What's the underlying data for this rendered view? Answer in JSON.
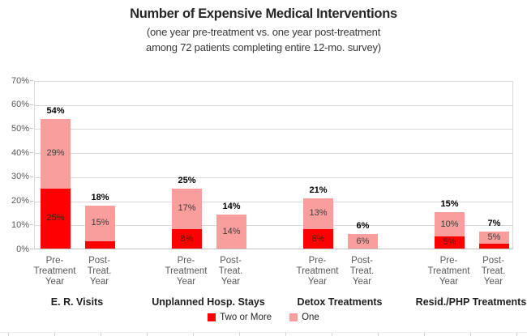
{
  "header": {
    "title": "Number of Expensive Medical Interventions",
    "subtitle_line1": "(one year pre-treatment vs. one year post-treatment",
    "subtitle_line2": "among 72 patients completing entire 12-mo. survey)"
  },
  "legend": [
    {
      "name": "Two or More",
      "color": "#fe0000"
    },
    {
      "name": "One",
      "color": "#fa9d9d"
    }
  ],
  "chart_data": {
    "type": "bar",
    "stacked": true,
    "title": "Number of Expensive Medical Interventions",
    "ylabel": "",
    "xlabel": "",
    "ylim": [
      0,
      70
    ],
    "ytick_step": 10,
    "ytick_labels": [
      "0%",
      "10%",
      "20%",
      "30%",
      "40%",
      "50%",
      "60%",
      "70%"
    ],
    "grid": true,
    "legend_position": "bottom",
    "series": [
      {
        "name": "Two or More",
        "color": "#fe0000"
      },
      {
        "name": "One",
        "color": "#fa9d9d"
      }
    ],
    "groups": [
      {
        "label": "E. R. Visits",
        "bars": [
          {
            "cat_lines": [
              "Pre-",
              "Treatment",
              "Year"
            ],
            "total": 54,
            "total_label": "54%",
            "two_or_more": 25,
            "two_or_more_label": "25%",
            "one": 29,
            "one_label": "29%"
          },
          {
            "cat_lines": [
              "Post-",
              "Treat.",
              "Year"
            ],
            "total": 18,
            "total_label": "18%",
            "two_or_more": 3,
            "two_or_more_label": "",
            "one": 15,
            "one_label": "15%"
          }
        ]
      },
      {
        "label": "Unplanned Hosp. Stays",
        "bars": [
          {
            "cat_lines": [
              "Pre-",
              "Treatment",
              "Year"
            ],
            "total": 25,
            "total_label": "25%",
            "two_or_more": 8,
            "two_or_more_label": "8%",
            "one": 17,
            "one_label": "17%"
          },
          {
            "cat_lines": [
              "Post-",
              "Treat.",
              "Year"
            ],
            "total": 14,
            "total_label": "14%",
            "two_or_more": 0,
            "two_or_more_label": "",
            "one": 14,
            "one_label": "14%"
          }
        ]
      },
      {
        "label": "Detox Treatments",
        "bars": [
          {
            "cat_lines": [
              "Pre-",
              "Treatment",
              "Year"
            ],
            "total": 21,
            "total_label": "21%",
            "two_or_more": 8,
            "two_or_more_label": "8%",
            "one": 13,
            "one_label": "13%"
          },
          {
            "cat_lines": [
              "Post-",
              "Treat.",
              "Year"
            ],
            "total": 6,
            "total_label": "6%",
            "two_or_more": 0,
            "two_or_more_label": "",
            "one": 6,
            "one_label": "6%"
          }
        ]
      },
      {
        "label": "Resid./PHP Treatments",
        "bars": [
          {
            "cat_lines": [
              "Pre-",
              "Treatment",
              "Year"
            ],
            "total": 15,
            "total_label": "15%",
            "two_or_more": 5,
            "two_or_more_label": "5%",
            "one": 10,
            "one_label": "10%"
          },
          {
            "cat_lines": [
              "Post-",
              "Treat.",
              "Year"
            ],
            "total": 7,
            "total_label": "7%",
            "two_or_more": 2,
            "two_or_more_label": "",
            "one": 5,
            "one_label": "5%"
          }
        ]
      }
    ]
  }
}
